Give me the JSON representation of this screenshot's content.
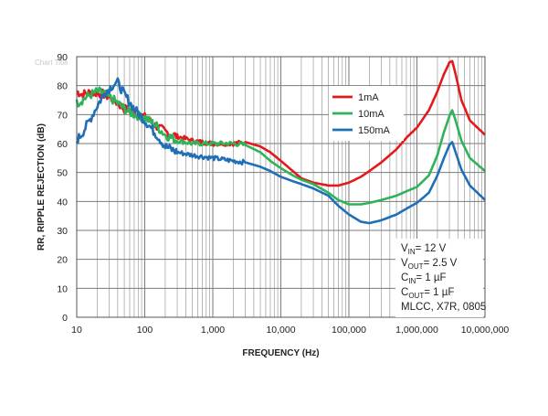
{
  "chart_data": {
    "type": "line",
    "x_scale": "log",
    "grid": true,
    "legend_position": "right",
    "xlabel": "FREQUENCY (Hz)",
    "ylabel": "RR, RIPPLE  REJECTION (dB)",
    "xlim": [
      10,
      10000000
    ],
    "ylim": [
      0,
      90
    ],
    "x_ticks": [
      10,
      100,
      1000,
      10000,
      100000,
      1000000,
      10000000
    ],
    "x_tick_labels": [
      "10",
      "100",
      "1,000",
      "10,000",
      "100,000",
      "1,000,000",
      "10,000,000"
    ],
    "y_ticks": [
      0,
      10,
      20,
      30,
      40,
      50,
      60,
      70,
      80,
      90
    ],
    "y_tick_labels": [
      "0",
      "10",
      "20",
      "30",
      "40",
      "50",
      "60",
      "70",
      "80",
      "90"
    ],
    "chart_title_watermark": "Chart Title",
    "series": [
      {
        "name": "1mA",
        "color": "#e31a1c",
        "x": [
          10,
          12,
          15,
          20,
          25,
          30,
          40,
          50,
          70,
          100,
          150,
          200,
          300,
          500,
          700,
          1000,
          2000,
          3000,
          5000,
          7000,
          10000,
          15000,
          20000,
          30000,
          50000,
          70000,
          100000,
          150000,
          200000,
          300000,
          500000,
          700000,
          1000000,
          1500000,
          2000000,
          2500000,
          3000000,
          3300000,
          3700000,
          4500000,
          6000000,
          10000000
        ],
        "y": [
          78,
          77,
          77.5,
          77.5,
          77,
          76,
          74,
          72,
          71,
          69,
          66,
          64,
          62.5,
          61,
          60.5,
          60,
          60,
          60.5,
          59,
          57,
          54,
          50.5,
          48,
          46.5,
          45.5,
          45.5,
          46.5,
          48.5,
          50.5,
          53.5,
          58,
          62,
          65.5,
          71.5,
          78,
          84,
          88,
          88.5,
          84,
          75,
          68,
          63
        ]
      },
      {
        "name": "10mA",
        "color": "#2eb35a",
        "x": [
          10,
          12,
          15,
          20,
          25,
          30,
          40,
          50,
          70,
          100,
          150,
          200,
          300,
          500,
          700,
          1000,
          2000,
          3000,
          5000,
          7000,
          10000,
          15000,
          20000,
          30000,
          50000,
          70000,
          100000,
          150000,
          200000,
          300000,
          500000,
          700000,
          1000000,
          1500000,
          2000000,
          2500000,
          3000000,
          3300000,
          3700000,
          4500000,
          6000000,
          10000000
        ],
        "y": [
          74,
          75,
          76.5,
          78,
          77.5,
          76,
          74,
          72,
          70,
          69,
          66,
          63,
          61,
          60,
          60,
          60,
          60,
          59.5,
          57,
          54,
          51.5,
          49,
          47.5,
          46,
          43,
          40.5,
          39,
          39,
          39.5,
          40.5,
          42,
          43.5,
          45,
          49,
          56,
          64,
          69.5,
          71.5,
          68,
          61,
          55,
          50.5
        ]
      },
      {
        "name": "150mA",
        "color": "#1f6fb8",
        "x": [
          10,
          12,
          15,
          20,
          25,
          30,
          35,
          40,
          45,
          50,
          70,
          100,
          150,
          200,
          300,
          500,
          700,
          1000,
          2000,
          3000,
          5000,
          7000,
          10000,
          15000,
          20000,
          30000,
          50000,
          70000,
          100000,
          150000,
          200000,
          300000,
          500000,
          700000,
          1000000,
          1500000,
          2000000,
          2500000,
          3000000,
          3300000,
          3700000,
          4500000,
          6000000,
          10000000
        ],
        "y": [
          61,
          63.5,
          67.5,
          73,
          77,
          79,
          80.5,
          81,
          79,
          77,
          72,
          68,
          63,
          59,
          57,
          56,
          55.5,
          55,
          54,
          53.5,
          52,
          50.5,
          48.5,
          47,
          46,
          44.5,
          42,
          38.5,
          35.5,
          33,
          32.5,
          33.5,
          35.5,
          37.5,
          39.5,
          43,
          49,
          55,
          59.5,
          60.5,
          57,
          51,
          45.5,
          40.5
        ]
      }
    ],
    "annotation": {
      "lines": [
        {
          "main": "V",
          "sub": "IN",
          "rest": "= 12 V"
        },
        {
          "main": "V",
          "sub": "OUT",
          "rest": "= 2.5 V"
        },
        {
          "main": "C",
          "sub": "IN",
          "rest": "= 1 µF"
        },
        {
          "main": "C",
          "sub": "OUT",
          "rest": "= 1 µF"
        },
        {
          "main": "MLCC, X7R, 0805",
          "sub": "",
          "rest": ""
        }
      ]
    }
  }
}
